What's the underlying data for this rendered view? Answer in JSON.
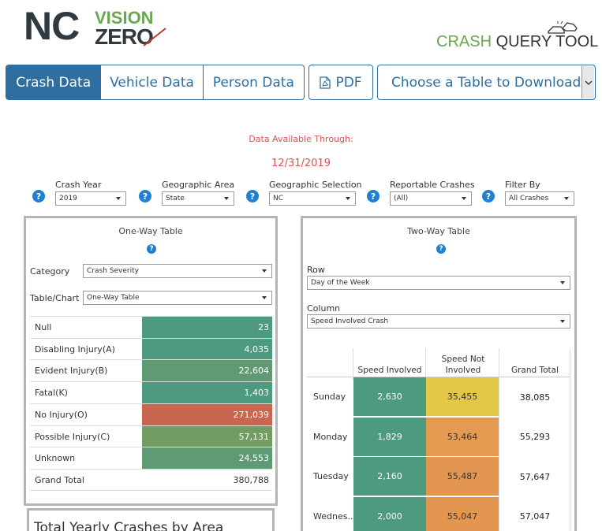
{
  "logo": {
    "nc": "NC",
    "vision": "VISION",
    "zero": "ZERO"
  },
  "tool_title": {
    "crash": "CRASH",
    "query_tool": " QUERY TOOL"
  },
  "tabs": [
    {
      "label": "Crash Data",
      "active": true
    },
    {
      "label": "Vehicle Data",
      "active": false
    },
    {
      "label": "Person Data",
      "active": false
    }
  ],
  "pdf_label": "PDF",
  "download_select": {
    "value": "Choose a Table to Download:"
  },
  "availability": {
    "label": "Data Available Through:",
    "date": "12/31/2019"
  },
  "filters": {
    "crash_year": {
      "label": "Crash Year",
      "value": "2019"
    },
    "geographic_area": {
      "label": "Geographic Area",
      "value": "State"
    },
    "geographic_selection": {
      "label": "Geographic Selection",
      "value": "NC"
    },
    "reportable_crashes": {
      "label": "Reportable Crashes",
      "value": "(All)"
    },
    "filter_by": {
      "label": "Filter By",
      "value": "All Crashes"
    }
  },
  "help_glyph": "?",
  "one_way": {
    "title": "One-Way Table",
    "category_label": "Category",
    "category_value": "Crash Severity",
    "table_chart_label": "Table/Chart",
    "table_chart_value": "One-Way Table",
    "rows": [
      {
        "label": "Null",
        "value": "23",
        "color": "#4e9a7f"
      },
      {
        "label": "Disabling Injury(A)",
        "value": "4,035",
        "color": "#4e9a7f"
      },
      {
        "label": "Evident Injury(B)",
        "value": "22,604",
        "color": "#619a72"
      },
      {
        "label": "Fatal(K)",
        "value": "1,403",
        "color": "#4e9a7f"
      },
      {
        "label": "No Injury(O)",
        "value": "271,039",
        "color": "#c8664f"
      },
      {
        "label": "Possible Injury(C)",
        "value": "57,131",
        "color": "#739c62"
      },
      {
        "label": "Unknown",
        "value": "24,553",
        "color": "#5e9a74"
      }
    ],
    "grand_total_label": "Grand Total",
    "grand_total_value": "380,788"
  },
  "two_way": {
    "title": "Two-Way Table",
    "row_label": "Row",
    "row_value": "Day of the Week",
    "column_label": "Column",
    "column_value": "Speed Involved Crash",
    "headers": {
      "speed_involved": "Speed Involved",
      "speed_not_involved": "Speed Not Involved",
      "grand_total": "Grand Total"
    },
    "rows": [
      {
        "label": "Sunday",
        "speed": "2,630",
        "not_speed": "35,455",
        "total": "38,085",
        "not_speed_color": "#e3c746"
      },
      {
        "label": "Monday",
        "speed": "1,829",
        "not_speed": "53,464",
        "total": "55,293",
        "not_speed_color": "#e59a52"
      },
      {
        "label": "Tuesday",
        "speed": "2,160",
        "not_speed": "55,487",
        "total": "57,647",
        "not_speed_color": "#e39650"
      },
      {
        "label": "Wednes..",
        "speed": "2,000",
        "not_speed": "55,047",
        "total": "57,047",
        "not_speed_color": "#e39650"
      }
    ],
    "speed_color": "#4e9a7f"
  },
  "bottom_panel_title": "Total Yearly Crashes by Area"
}
